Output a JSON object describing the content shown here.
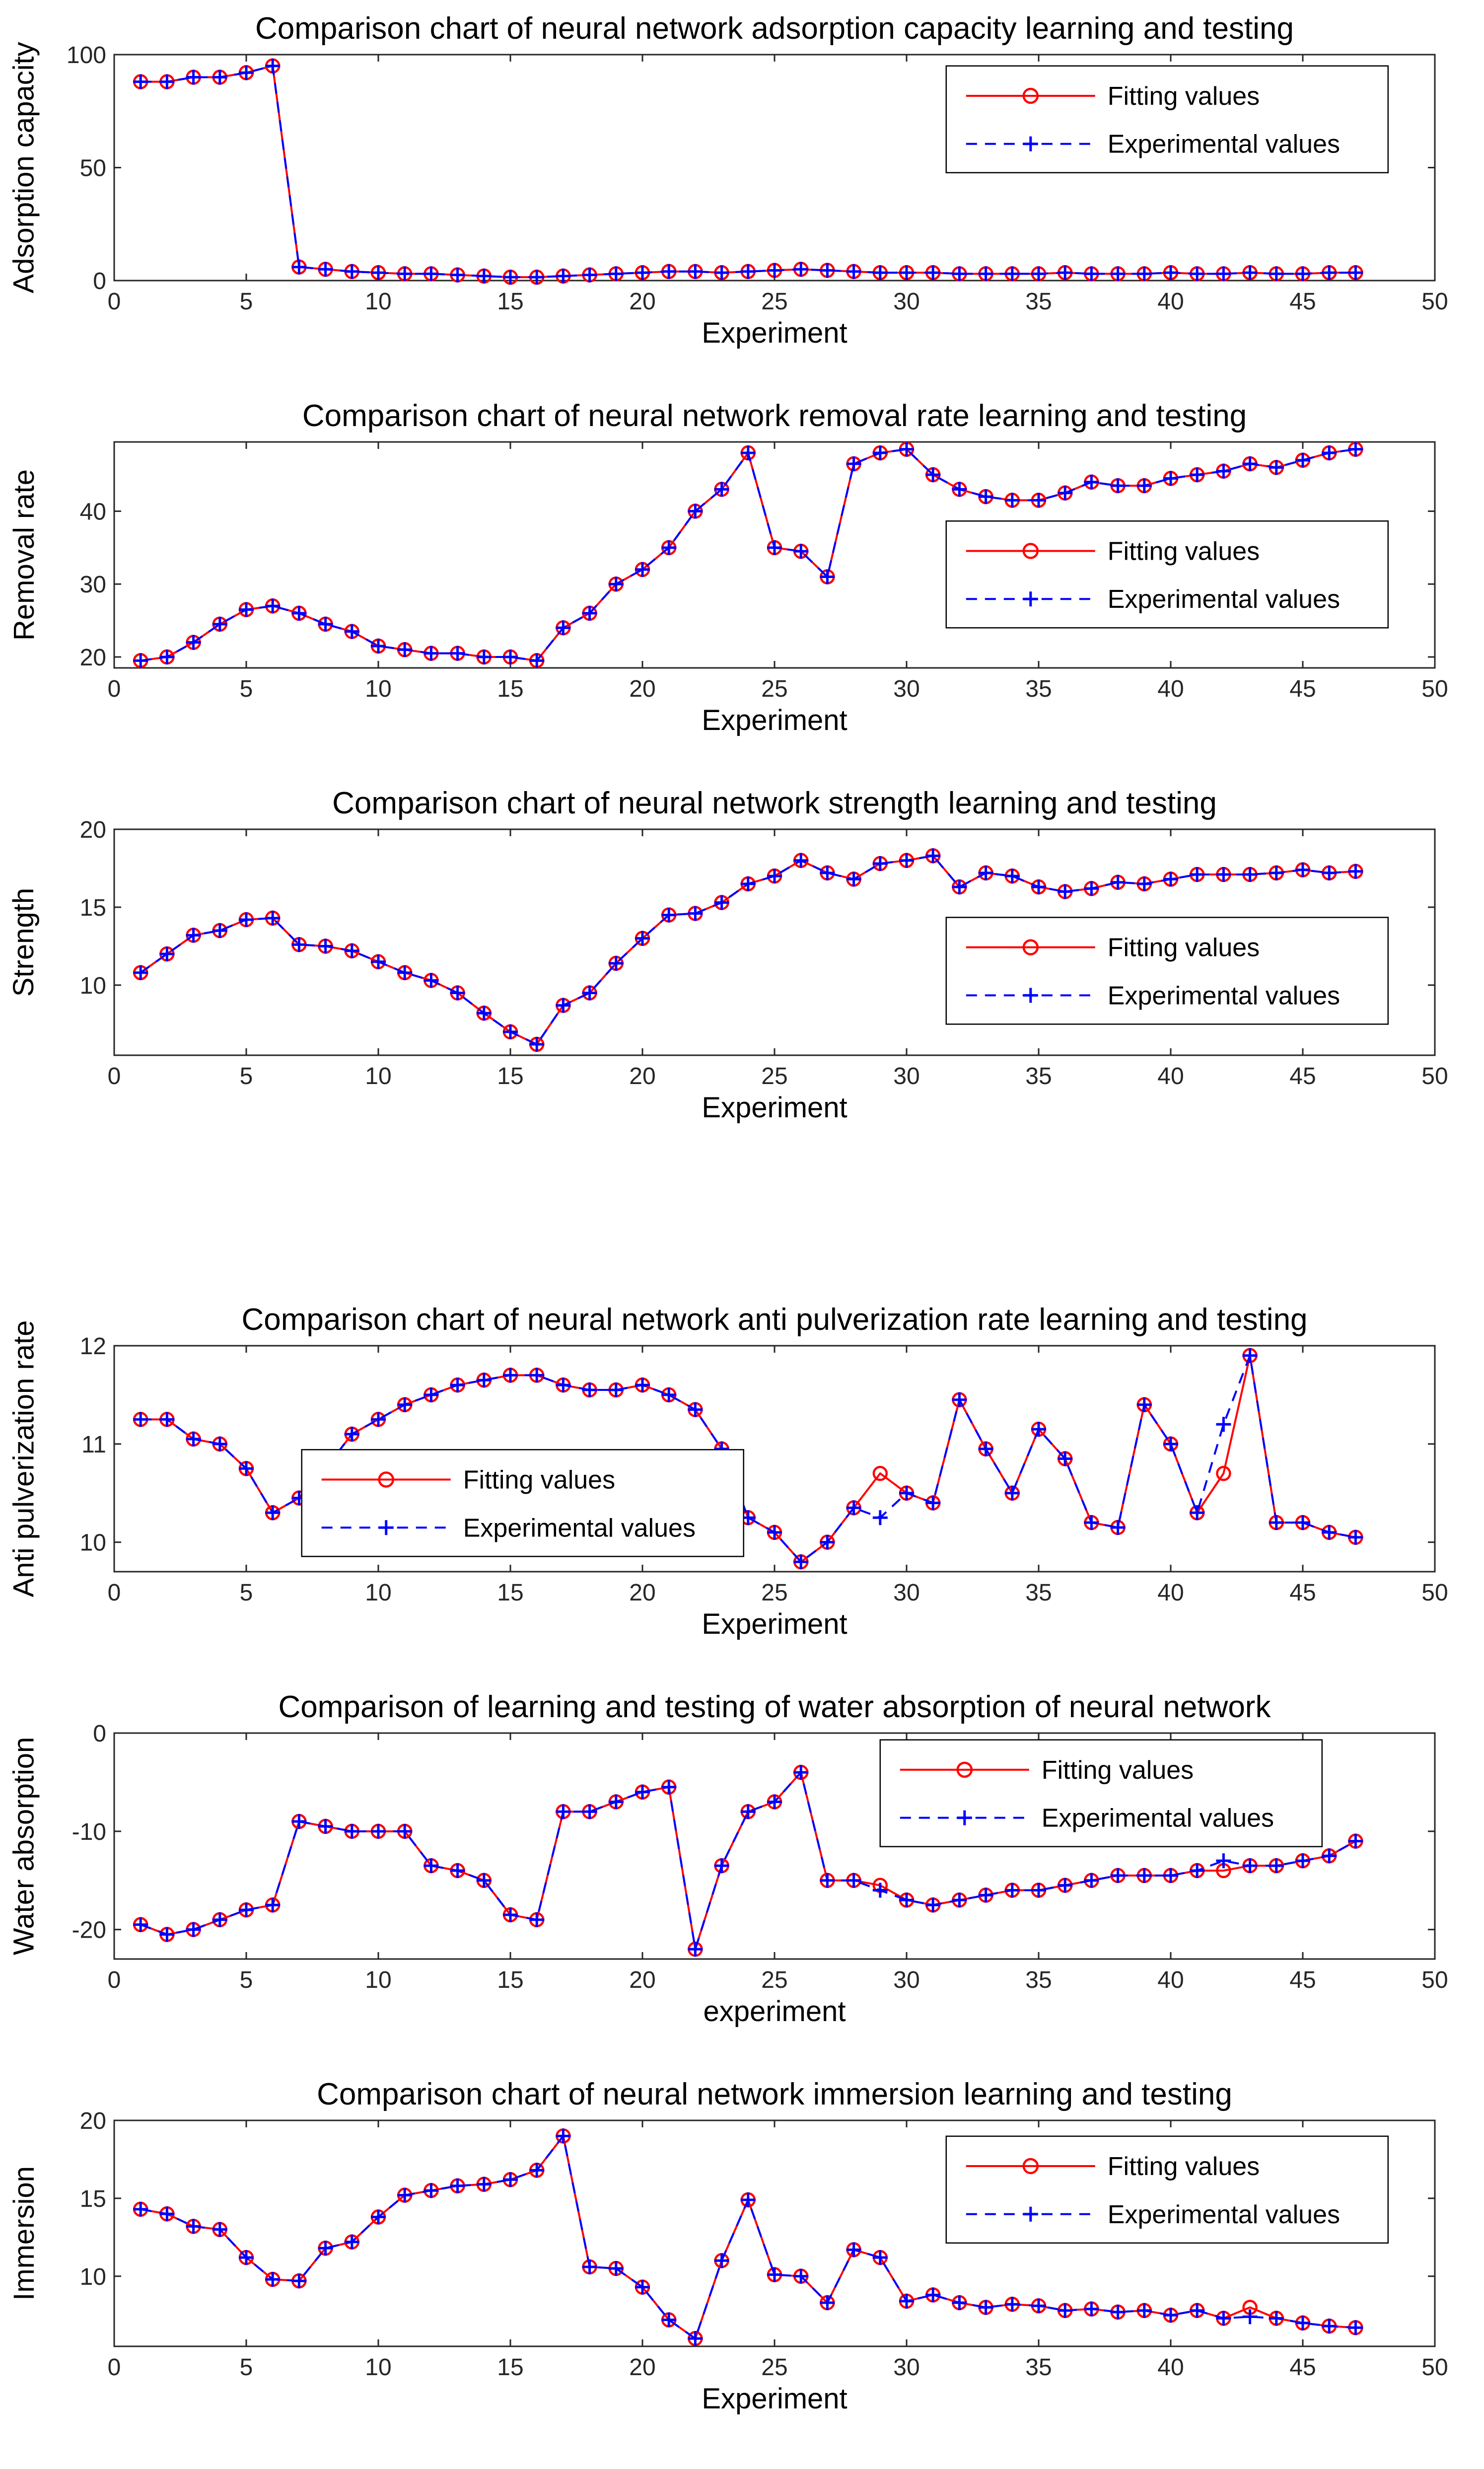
{
  "figure": {
    "background": "#ffffff"
  },
  "colors": {
    "fitting": "#ff0000",
    "experimental": "#0000ff",
    "axis": "#262626",
    "text": "#000000"
  },
  "x": [
    1,
    2,
    3,
    4,
    5,
    6,
    7,
    8,
    9,
    10,
    11,
    12,
    13,
    14,
    15,
    16,
    17,
    18,
    19,
    20,
    21,
    22,
    23,
    24,
    25,
    26,
    27,
    28,
    29,
    30,
    31,
    32,
    33,
    34,
    35,
    36,
    37,
    38,
    39,
    40,
    41,
    42,
    43,
    44,
    45,
    46,
    47
  ],
  "chart_data": [
    {
      "type": "line",
      "title": "Comparison chart of neural network adsorption capacity learning and testing",
      "xlabel": "Experiment",
      "ylabel": "Adsorption capacity",
      "xlim": [
        0,
        50
      ],
      "ylim": [
        0,
        100
      ],
      "xticks": [
        0,
        5,
        10,
        15,
        20,
        25,
        30,
        35,
        40,
        45,
        50
      ],
      "yticks": [
        0,
        50,
        100
      ],
      "grid": false,
      "legend_pos": {
        "x_frac": 0.63,
        "y_frac": 0.05
      },
      "series": [
        {
          "name": "Fitting values",
          "color": "#ff0000",
          "marker": "circle",
          "line": "solid",
          "values": [
            88,
            88,
            90,
            90,
            92,
            95,
            6,
            5,
            4,
            3.5,
            3,
            3,
            2.5,
            2,
            1.5,
            1.5,
            2,
            2.5,
            3,
            3.5,
            4,
            4,
            3.5,
            4,
            4.5,
            5,
            4.5,
            4,
            3.5,
            3.5,
            3.5,
            3,
            3,
            3,
            3,
            3.5,
            3,
            3,
            3,
            3.5,
            3,
            3,
            3.5,
            3,
            3,
            3.5,
            3.5
          ]
        },
        {
          "name": "Experimental values",
          "color": "#0000ff",
          "marker": "plus",
          "line": "dashed",
          "values": [
            88,
            88,
            90,
            90,
            92,
            95,
            6,
            5,
            4,
            3.5,
            3,
            3,
            2.5,
            2,
            1.5,
            1.5,
            2,
            2.5,
            3,
            3.5,
            4,
            4,
            3.5,
            4,
            4.5,
            5,
            4.5,
            4,
            3.5,
            3.5,
            3.5,
            3,
            3,
            3,
            3,
            3.5,
            3,
            3,
            3,
            3.5,
            3,
            3,
            3.5,
            3,
            3,
            3.5,
            3.5
          ]
        }
      ]
    },
    {
      "type": "line",
      "title": "Comparison chart of neural network removal rate learning and testing",
      "xlabel": "Experiment",
      "ylabel": "Removal rate",
      "xlim": [
        0,
        50
      ],
      "ylim": [
        18.5,
        49.5
      ],
      "xticks": [
        0,
        5,
        10,
        15,
        20,
        25,
        30,
        35,
        40,
        45,
        50
      ],
      "yticks": [
        20,
        30,
        40
      ],
      "grid": false,
      "legend_pos": {
        "x_frac": 0.63,
        "y_frac": 0.35
      },
      "series": [
        {
          "name": "Fitting values",
          "color": "#ff0000",
          "marker": "circle",
          "line": "solid",
          "values": [
            19.5,
            20,
            22,
            24.5,
            26.5,
            27,
            26,
            24.5,
            23.5,
            21.5,
            21,
            20.5,
            20.5,
            20,
            20,
            19.5,
            24,
            26,
            30,
            32,
            35,
            40,
            43,
            48,
            35,
            34.5,
            31,
            46.5,
            48,
            48.5,
            45,
            43,
            42,
            41.5,
            41.5,
            42.5,
            44,
            43.5,
            43.5,
            44.5,
            45,
            45.5,
            46.5,
            46,
            47,
            48,
            48.5
          ]
        },
        {
          "name": "Experimental values",
          "color": "#0000ff",
          "marker": "plus",
          "line": "dashed",
          "values": [
            19.5,
            20,
            22,
            24.5,
            26.5,
            27,
            26,
            24.5,
            23.5,
            21.5,
            21,
            20.5,
            20.5,
            20,
            20,
            19.5,
            24,
            26,
            30,
            32,
            35,
            40,
            43,
            48,
            35,
            34.5,
            31,
            46.5,
            48,
            48.5,
            45,
            43,
            42,
            41.5,
            41.5,
            42.5,
            44,
            43.5,
            43.5,
            44.5,
            45,
            45.5,
            46.5,
            46,
            47,
            48,
            48.5
          ]
        }
      ]
    },
    {
      "type": "line",
      "title": "Comparison chart of neural network strength learning and testing",
      "xlabel": "Experiment",
      "ylabel": "Strength",
      "xlim": [
        0,
        50
      ],
      "ylim": [
        5.5,
        20
      ],
      "xticks": [
        0,
        5,
        10,
        15,
        20,
        25,
        30,
        35,
        40,
        45,
        50
      ],
      "yticks": [
        10,
        15,
        20
      ],
      "grid": false,
      "legend_pos": {
        "x_frac": 0.63,
        "y_frac": 0.39
      },
      "series": [
        {
          "name": "Fitting values",
          "color": "#ff0000",
          "marker": "circle",
          "line": "solid",
          "values": [
            10.8,
            12,
            13.2,
            13.5,
            14.2,
            14.3,
            12.6,
            12.5,
            12.2,
            11.5,
            10.8,
            10.3,
            9.5,
            8.2,
            7,
            6.2,
            8.7,
            9.5,
            11.4,
            13,
            14.5,
            14.6,
            15.3,
            16.5,
            17,
            18,
            17.2,
            16.8,
            17.8,
            18,
            18.3,
            16.3,
            17.2,
            17,
            16.3,
            16,
            16.2,
            16.6,
            16.5,
            16.8,
            17.1,
            17.1,
            17.1,
            17.2,
            17.4,
            17.2,
            17.3
          ]
        },
        {
          "name": "Experimental values",
          "color": "#0000ff",
          "marker": "plus",
          "line": "dashed",
          "values": [
            10.8,
            12,
            13.2,
            13.5,
            14.2,
            14.3,
            12.6,
            12.5,
            12.2,
            11.5,
            10.8,
            10.3,
            9.5,
            8.2,
            7,
            6.2,
            8.7,
            9.5,
            11.4,
            13,
            14.5,
            14.6,
            15.3,
            16.5,
            17,
            18,
            17.2,
            16.8,
            17.8,
            18,
            18.3,
            16.3,
            17.2,
            17,
            16.3,
            16,
            16.2,
            16.6,
            16.5,
            16.8,
            17.1,
            17.1,
            17.1,
            17.2,
            17.4,
            17.2,
            17.3
          ]
        }
      ]
    },
    {
      "type": "line",
      "title": "Comparison chart of neural network anti pulverization rate learning and testing",
      "xlabel": "Experiment",
      "ylabel": "Anti pulverization rate",
      "xlim": [
        0,
        50
      ],
      "ylim": [
        9.7,
        12
      ],
      "xticks": [
        0,
        5,
        10,
        15,
        20,
        25,
        30,
        35,
        40,
        45,
        50
      ],
      "yticks": [
        10,
        11,
        12
      ],
      "grid": false,
      "legend_pos": {
        "x_frac": 0.142,
        "y_frac": 0.46
      },
      "series": [
        {
          "name": "Fitting values",
          "color": "#ff0000",
          "marker": "circle",
          "line": "solid",
          "values": [
            11.25,
            11.25,
            11.05,
            11,
            10.75,
            10.3,
            10.45,
            10.75,
            11.1,
            11.25,
            11.4,
            11.5,
            11.6,
            11.65,
            11.7,
            11.7,
            11.6,
            11.55,
            11.55,
            11.6,
            11.5,
            11.35,
            10.95,
            10.25,
            10.1,
            9.8,
            10,
            10.35,
            10.7,
            10.5,
            10.4,
            11.45,
            10.95,
            10.5,
            11.15,
            10.85,
            10.2,
            10.15,
            11.4,
            11,
            10.3,
            10.7,
            11.9,
            10.2,
            10.2,
            10.1,
            10.05
          ]
        },
        {
          "name": "Experimental values",
          "color": "#0000ff",
          "marker": "plus",
          "line": "dashed",
          "values": [
            11.25,
            11.25,
            11.05,
            11,
            10.75,
            10.3,
            10.45,
            10.75,
            11.1,
            11.25,
            11.4,
            11.5,
            11.6,
            11.65,
            11.7,
            11.7,
            11.6,
            11.55,
            11.55,
            11.6,
            11.5,
            11.35,
            10.95,
            10.25,
            10.1,
            9.8,
            10,
            10.35,
            10.25,
            10.5,
            10.4,
            11.45,
            10.95,
            10.5,
            11.15,
            10.85,
            10.2,
            10.15,
            11.4,
            11,
            10.3,
            11.2,
            11.9,
            10.2,
            10.2,
            10.1,
            10.05
          ]
        }
      ]
    },
    {
      "type": "line",
      "title": "Comparison of learning and testing of water absorption of neural network",
      "xlabel": "experiment",
      "ylabel": "Water absorption",
      "xlim": [
        0,
        50
      ],
      "ylim": [
        -23,
        0
      ],
      "xticks": [
        0,
        5,
        10,
        15,
        20,
        25,
        30,
        35,
        40,
        45,
        50
      ],
      "yticks": [
        -20,
        -10,
        0
      ],
      "grid": false,
      "legend_pos": {
        "x_frac": 0.58,
        "y_frac": 0.03
      },
      "series": [
        {
          "name": "Fitting values",
          "color": "#ff0000",
          "marker": "circle",
          "line": "solid",
          "values": [
            -19.5,
            -20.5,
            -20,
            -19,
            -18,
            -17.5,
            -9,
            -9.5,
            -10,
            -10,
            -10,
            -13.5,
            -14,
            -15,
            -18.5,
            -19,
            -8,
            -8,
            -7,
            -6,
            -5.5,
            -22,
            -13.5,
            -8,
            -7,
            -4,
            -15,
            -15,
            -15.5,
            -17,
            -17.5,
            -17,
            -16.5,
            -16,
            -16,
            -15.5,
            -15,
            -14.5,
            -14.5,
            -14.5,
            -14,
            -14,
            -13.5,
            -13.5,
            -13,
            -12.5,
            -11
          ]
        },
        {
          "name": "Experimental values",
          "color": "#0000ff",
          "marker": "plus",
          "line": "dashed",
          "values": [
            -19.5,
            -20.5,
            -20,
            -19,
            -18,
            -17.5,
            -9,
            -9.5,
            -10,
            -10,
            -10,
            -13.5,
            -14,
            -15,
            -18.5,
            -19,
            -8,
            -8,
            -7,
            -6,
            -5.5,
            -22,
            -13.5,
            -8,
            -7,
            -4,
            -15,
            -15,
            -16,
            -17,
            -17.5,
            -17,
            -16.5,
            -16,
            -16,
            -15.5,
            -15,
            -14.5,
            -14.5,
            -14.5,
            -14,
            -13,
            -13.5,
            -13.5,
            -13,
            -12.5,
            -11
          ]
        }
      ]
    },
    {
      "type": "line",
      "title": "Comparison chart of neural network immersion learning and testing",
      "xlabel": "Experiment",
      "ylabel": "Immersion",
      "xlim": [
        0,
        50
      ],
      "ylim": [
        5.5,
        20
      ],
      "xticks": [
        0,
        5,
        10,
        15,
        20,
        25,
        30,
        35,
        40,
        45,
        50
      ],
      "yticks": [
        10,
        15,
        20
      ],
      "grid": false,
      "legend_pos": {
        "x_frac": 0.63,
        "y_frac": 0.07
      },
      "series": [
        {
          "name": "Fitting values",
          "color": "#ff0000",
          "marker": "circle",
          "line": "solid",
          "values": [
            14.3,
            14,
            13.2,
            13,
            11.2,
            9.8,
            9.7,
            11.8,
            12.2,
            13.8,
            15.2,
            15.5,
            15.8,
            15.9,
            16.2,
            16.8,
            19,
            10.6,
            10.5,
            9.3,
            7.2,
            6,
            11,
            14.9,
            10.1,
            10,
            8.3,
            11.7,
            11.2,
            8.4,
            8.8,
            8.3,
            8,
            8.2,
            8.1,
            7.8,
            7.9,
            7.7,
            7.8,
            7.5,
            7.8,
            7.3,
            8,
            7.3,
            7,
            6.8,
            6.7
          ]
        },
        {
          "name": "Experimental values",
          "color": "#0000ff",
          "marker": "plus",
          "line": "dashed",
          "values": [
            14.3,
            14,
            13.2,
            13,
            11.2,
            9.8,
            9.7,
            11.8,
            12.2,
            13.8,
            15.2,
            15.5,
            15.8,
            15.9,
            16.2,
            16.8,
            19,
            10.6,
            10.5,
            9.3,
            7.2,
            6,
            11,
            14.9,
            10.1,
            10,
            8.3,
            11.7,
            11.2,
            8.4,
            8.8,
            8.3,
            8,
            8.2,
            8.1,
            7.8,
            7.9,
            7.7,
            7.8,
            7.5,
            7.8,
            7.3,
            7.4,
            7.3,
            7,
            6.8,
            6.7
          ]
        }
      ]
    }
  ]
}
